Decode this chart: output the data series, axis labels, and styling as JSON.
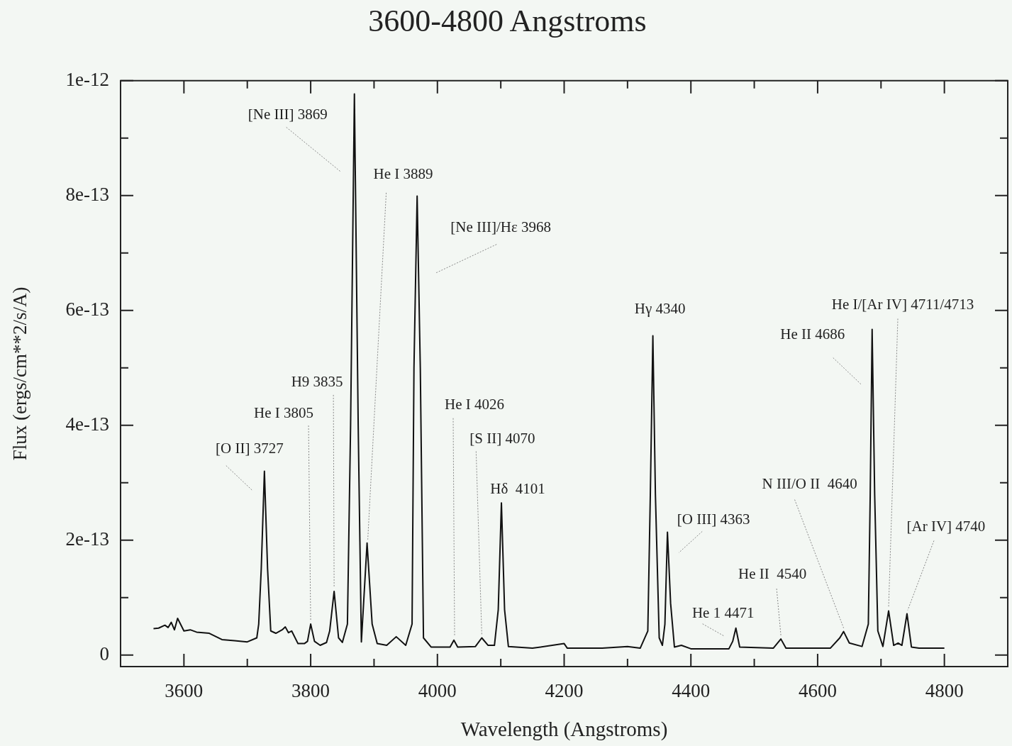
{
  "chart_data": {
    "type": "line",
    "title": "3600-4800 Angstroms",
    "xlabel": "Wavelength (Angstroms)",
    "ylabel": "Flux (ergs/cm**2/s/A)",
    "xlim": [
      3500,
      4900
    ],
    "xticks": [
      {
        "value": 3500,
        "label": null
      },
      3600,
      {
        "value": 3700,
        "label": null
      },
      3800,
      {
        "value": 3900,
        "label": null
      },
      4000,
      {
        "value": 4100,
        "label": null
      },
      4200,
      {
        "value": 4300,
        "label": null
      },
      4400,
      {
        "value": 4500,
        "label": null
      },
      4600,
      {
        "value": 4700,
        "label": null
      },
      4800
    ],
    "ylim": [
      -2e-14,
      1e-12
    ],
    "yticks": [
      {
        "value": 0,
        "label": "0"
      },
      {
        "value": 1e-13,
        "label": null
      },
      {
        "value": 2e-13,
        "label": "2e-13"
      },
      {
        "value": 3e-13,
        "label": null
      },
      {
        "value": 4e-13,
        "label": "4e-13"
      },
      {
        "value": 5e-13,
        "label": null
      },
      {
        "value": 6e-13,
        "label": "6e-13"
      },
      {
        "value": 7e-13,
        "label": null
      },
      {
        "value": 8e-13,
        "label": "8e-13"
      },
      {
        "value": 9e-13,
        "label": null
      },
      {
        "value": 1e-12,
        "label": "1e-12"
      }
    ],
    "grid": false,
    "legend": false,
    "marker": "none",
    "line_style": "solid",
    "series": [
      {
        "color": "#111111",
        "x": [
          3552,
          3560,
          3570,
          3575,
          3580,
          3585,
          3590,
          3600,
          3610,
          3620,
          3640,
          3660,
          3680,
          3700,
          3715,
          3718,
          3722,
          3727,
          3732,
          3737,
          3745,
          3755,
          3760,
          3765,
          3770,
          3780,
          3790,
          3795,
          3800,
          3806,
          3815,
          3825,
          3830,
          3837,
          3844,
          3850,
          3858,
          3863,
          3869,
          3875,
          3880,
          3889,
          3897,
          3905,
          3920,
          3935,
          3950,
          3960,
          3963,
          3968,
          3973,
          3978,
          3990,
          4020,
          4026,
          4032,
          4060,
          4070,
          4080,
          4090,
          4096,
          4101,
          4106,
          4112,
          4150,
          4200,
          4205,
          4260,
          4300,
          4320,
          4332,
          4336,
          4340,
          4344,
          4350,
          4355,
          4359,
          4363,
          4368,
          4374,
          4385,
          4400,
          4460,
          4466,
          4471,
          4477,
          4530,
          4542,
          4550,
          4620,
          4635,
          4641,
          4650,
          4670,
          4680,
          4683,
          4686,
          4690,
          4695,
          4703,
          4712,
          4720,
          4727,
          4733,
          4741,
          4748,
          4760,
          4800
        ],
        "values": [
          4.6e-14,
          4.7e-14,
          5.2e-14,
          4.8e-14,
          5.7e-14,
          4.4e-14,
          6.4e-14,
          4.2e-14,
          4.4e-14,
          4e-14,
          3.8e-14,
          2.7e-14,
          2.5e-14,
          2.3e-14,
          3e-14,
          5.4e-14,
          1.5e-13,
          3.2e-13,
          1.5e-13,
          4.2e-14,
          3.8e-14,
          4.4e-14,
          4.9e-14,
          3.9e-14,
          4.2e-14,
          2e-14,
          2e-14,
          2.4e-14,
          5.4e-14,
          2.4e-14,
          1.7e-14,
          2.2e-14,
          4.2e-14,
          1.11e-13,
          3e-14,
          2.2e-14,
          5.4e-14,
          4e-13,
          9.77e-13,
          4e-13,
          2.3e-14,
          1.95e-13,
          5.4e-14,
          2e-14,
          1.7e-14,
          3.2e-14,
          1.7e-14,
          5.4e-14,
          5e-13,
          7.99e-13,
          5e-13,
          3e-14,
          1.4e-14,
          1.4e-14,
          2.6e-14,
          1.4e-14,
          1.5e-14,
          3e-14,
          1.7e-14,
          1.7e-14,
          7.9e-14,
          2.65e-13,
          7.9e-14,
          1.5e-14,
          1.2e-14,
          2e-14,
          1.2e-14,
          1.2e-14,
          1.5e-14,
          1.2e-14,
          4.2e-14,
          2.8e-13,
          5.56e-13,
          2.8e-13,
          3e-14,
          1.7e-14,
          5.4e-14,
          2.14e-13,
          9e-14,
          1.4e-14,
          1.7e-14,
          1.1e-14,
          1.1e-14,
          2.4e-14,
          4.7e-14,
          1.4e-14,
          1.2e-14,
          2.8e-14,
          1.2e-14,
          1.2e-14,
          3e-14,
          4.1e-14,
          2.1e-14,
          1.5e-14,
          5.4e-14,
          2.8e-13,
          5.67e-13,
          2.8e-13,
          4.2e-14,
          1.5e-14,
          7.7e-14,
          1.7e-14,
          2.1e-14,
          1.7e-14,
          7.2e-14,
          1.4e-14,
          1.2e-14,
          1.2e-14
        ]
      }
    ],
    "annotations": [
      {
        "text": "[O II] 3727",
        "x": 3727,
        "y": 3.2e-13
      },
      {
        "text": "He I 3805",
        "x": 3800,
        "y": 5.4e-14
      },
      {
        "text": "H9 3835",
        "x": 3837,
        "y": 1.11e-13
      },
      {
        "text": "[Ne III] 3869",
        "x": 3869,
        "y": 9.77e-13
      },
      {
        "text": "He I 3889",
        "x": 3889,
        "y": 1.95e-13
      },
      {
        "text": "[Ne III]/Hε 3968",
        "x": 3968,
        "y": 7.99e-13
      },
      {
        "text": "He I 4026",
        "x": 4026,
        "y": 2.6e-14
      },
      {
        "text": "[S II] 4070",
        "x": 4070,
        "y": 3e-14
      },
      {
        "text": "Hδ  4101",
        "x": 4101,
        "y": 2.65e-13
      },
      {
        "text": "Hγ 4340",
        "x": 4340,
        "y": 5.56e-13
      },
      {
        "text": "[O III] 4363",
        "x": 4363,
        "y": 2.14e-13
      },
      {
        "text": "He 1 4471",
        "x": 4471,
        "y": 4.7e-14
      },
      {
        "text": "He II  4540",
        "x": 4542,
        "y": 2.8e-14
      },
      {
        "text": "N III/O II  4640",
        "x": 4641,
        "y": 4.1e-14
      },
      {
        "text": "He II 4686",
        "x": 4686,
        "y": 5.67e-13
      },
      {
        "text": "He I/[Ar IV] 4711/4713",
        "x": 4712,
        "y": 7.7e-14
      },
      {
        "text": "[Ar IV] 4740",
        "x": 4741,
        "y": 7.2e-14
      }
    ]
  }
}
